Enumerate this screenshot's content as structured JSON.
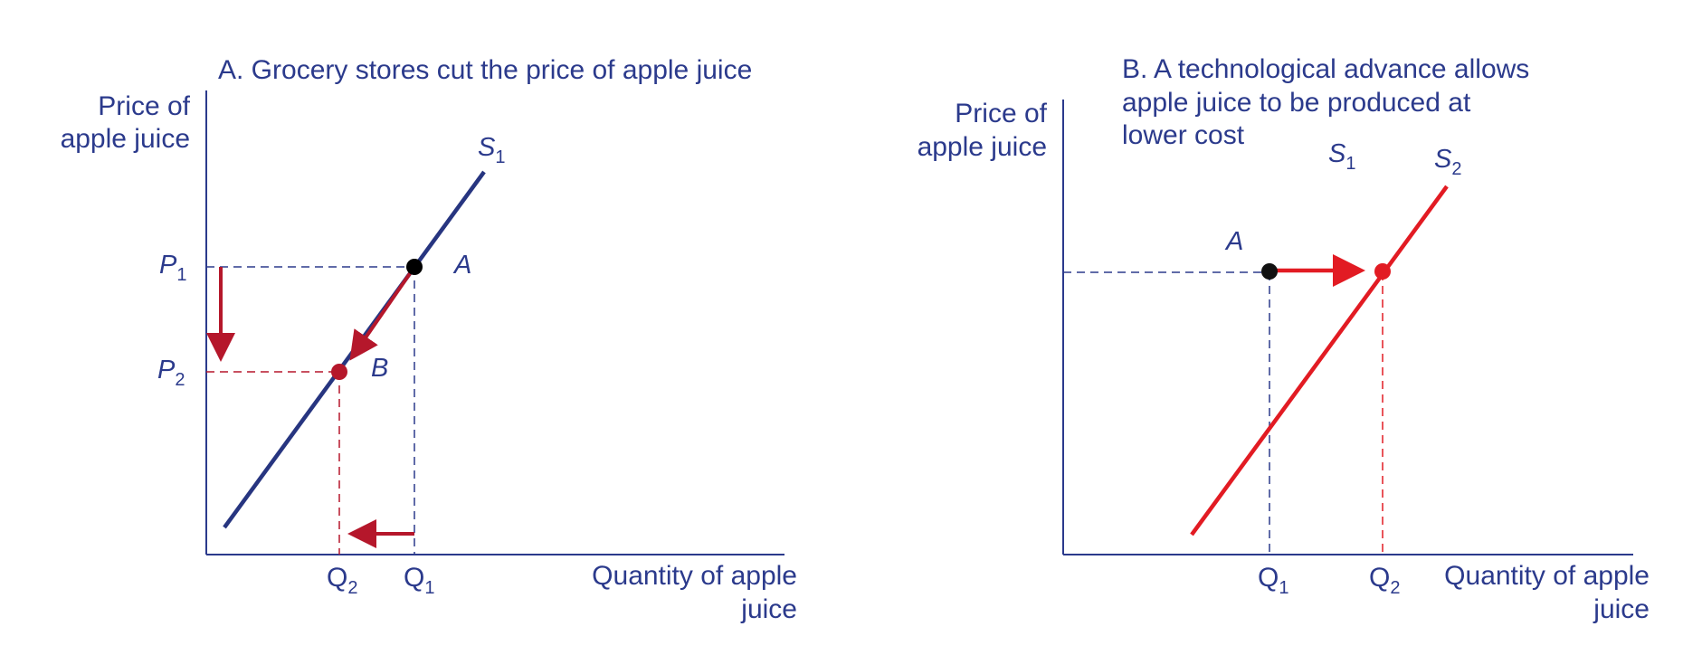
{
  "colors": {
    "navy": "#2b3a8c",
    "curve_navy": "#273580",
    "red": "#b5172b",
    "bright_red": "#e21b23",
    "black": "#000000"
  },
  "panel_a": {
    "title": "A. Grocery stores cut the price of apple juice",
    "y_axis_label": [
      "Price of",
      "apple juice"
    ],
    "x_axis_label": [
      "Quantity of apple",
      "juice"
    ],
    "curve": {
      "letter": "S",
      "sub": "1"
    },
    "p1": {
      "letter": "P",
      "sub": "1"
    },
    "p2": {
      "letter": "P",
      "sub": "2"
    },
    "q1": {
      "letter": "Q",
      "sub": "1"
    },
    "q2": {
      "letter": "Q",
      "sub": "2"
    },
    "point_a": "A",
    "point_b": "B"
  },
  "panel_b": {
    "title": [
      "B. A technological advance allows",
      "apple juice to be produced at",
      "lower cost"
    ],
    "y_axis_label": [
      "Price of",
      "apple juice"
    ],
    "x_axis_label": [
      "Quantity of apple",
      "juice"
    ],
    "curve_s1": {
      "letter": "S",
      "sub": "1"
    },
    "curve_s2": {
      "letter": "S",
      "sub": "2"
    },
    "q1": {
      "letter": "Q",
      "sub": "1"
    },
    "q2": {
      "letter": "Q",
      "sub": "2"
    },
    "point_a": "A"
  }
}
